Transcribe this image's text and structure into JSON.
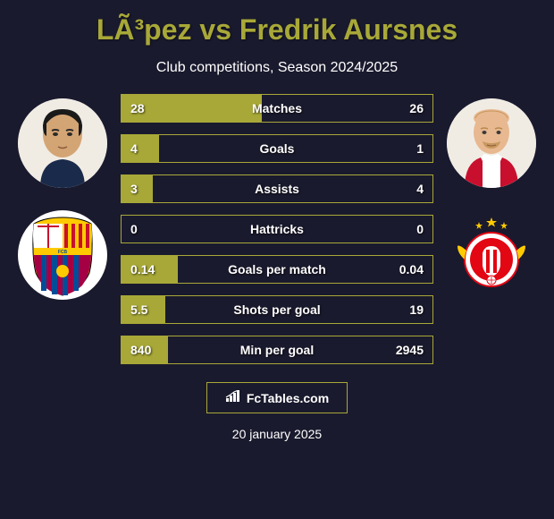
{
  "title": "LÃ³pez vs Fredrik Aursnes",
  "subtitle": "Club competitions, Season 2024/2025",
  "colors": {
    "background": "#1a1a2e",
    "accent": "#a8a838",
    "text": "#ffffff"
  },
  "player_left": {
    "name": "López",
    "club": "Barcelona",
    "club_colors": {
      "primary": "#a50044",
      "secondary": "#004d98",
      "accent": "#ffcb00"
    }
  },
  "player_right": {
    "name": "Fredrik Aursnes",
    "club": "Benfica",
    "club_colors": {
      "primary": "#e30613",
      "secondary": "#ffffff"
    }
  },
  "stats": [
    {
      "label": "Matches",
      "left_value": "28",
      "right_value": "26",
      "left_pct": 45,
      "right_pct": 0
    },
    {
      "label": "Goals",
      "left_value": "4",
      "right_value": "1",
      "left_pct": 12,
      "right_pct": 0
    },
    {
      "label": "Assists",
      "left_value": "3",
      "right_value": "4",
      "left_pct": 10,
      "right_pct": 0
    },
    {
      "label": "Hattricks",
      "left_value": "0",
      "right_value": "0",
      "left_pct": 0,
      "right_pct": 0
    },
    {
      "label": "Goals per match",
      "left_value": "0.14",
      "right_value": "0.04",
      "left_pct": 18,
      "right_pct": 0
    },
    {
      "label": "Shots per goal",
      "left_value": "5.5",
      "right_value": "19",
      "left_pct": 14,
      "right_pct": 0
    },
    {
      "label": "Min per goal",
      "left_value": "840",
      "right_value": "2945",
      "left_pct": 15,
      "right_pct": 0
    }
  ],
  "footer": {
    "logo_text": "FcTables.com",
    "date": "20 january 2025"
  }
}
